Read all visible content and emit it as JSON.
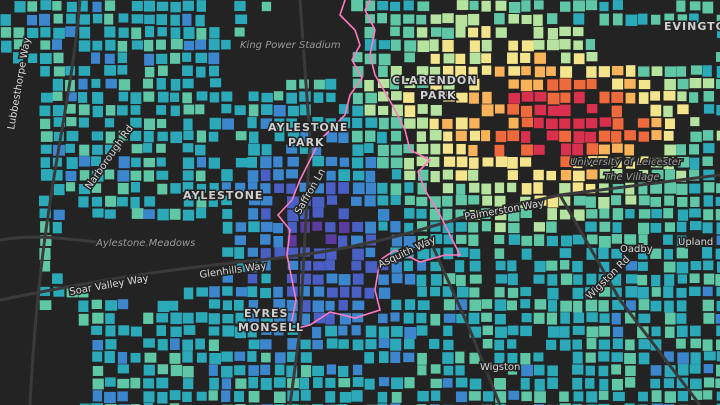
{
  "labels": {
    "king_power": "King Power Stadium",
    "clarendon1": "CLARENDON",
    "clarendon2": "PARK",
    "evington": "EVINGTON",
    "aylestone_park1": "AYLESTONE",
    "aylestone_park2": "PARK",
    "aylestone": "AYLESTONE",
    "meadows": "Aylestone Meadows",
    "soar_valley": "Soar Valley Way",
    "glenhills": "Glenhills Way",
    "eyres": "EYRES",
    "monsell": "MONSELL",
    "wigston": "Wigston",
    "oadby": "Oadby",
    "palmerston": "Palmerston Way",
    "asquith": "Asquith Way",
    "saffron": "Saffron Ln",
    "university": "University of Leicester",
    "village": "The Village",
    "narborough": "Narborough Rd",
    "lubbesthorpe": "Lubbesthorpe Way",
    "wigston_rd": "Wigston Rd",
    "upland": "Upland"
  }
}
